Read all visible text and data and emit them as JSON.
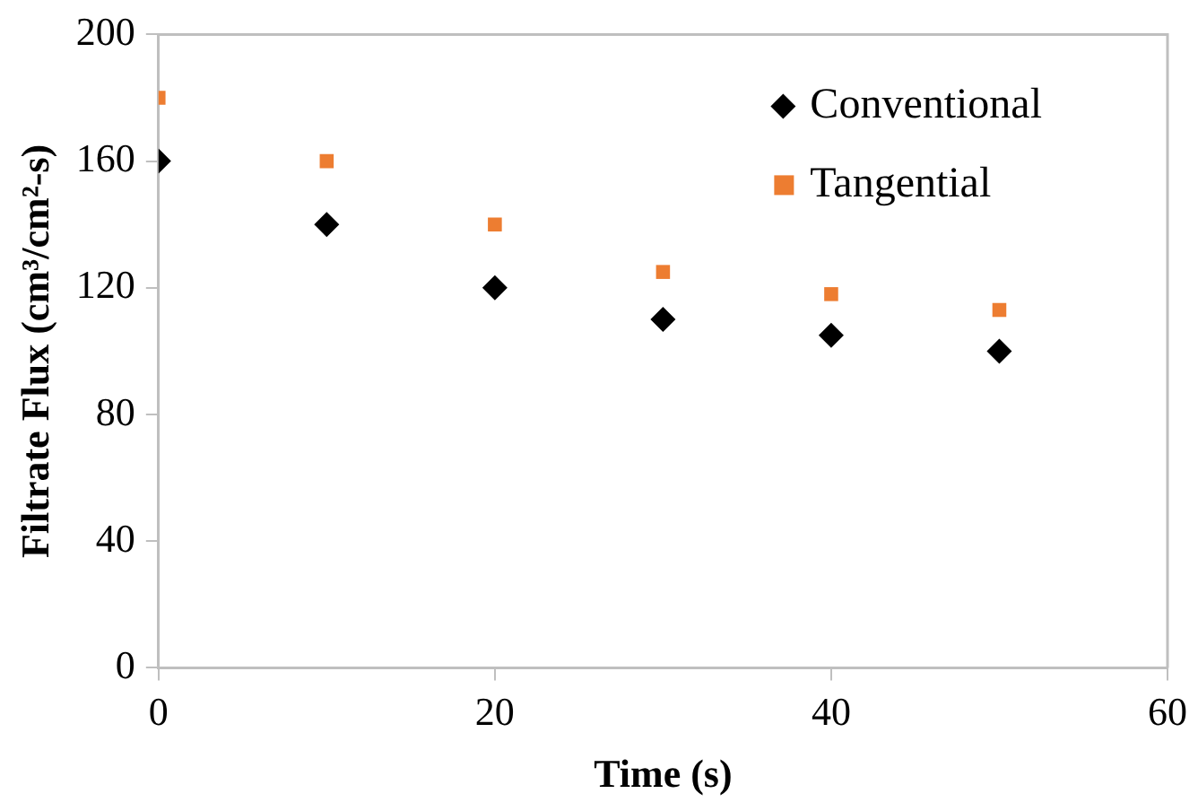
{
  "chart_data": {
    "type": "scatter",
    "xlabel": "Time (s)",
    "ylabel": "Filtrate Flux (cm³/cm²-s)",
    "x": [
      0,
      10,
      20,
      30,
      40,
      50
    ],
    "series": [
      {
        "name": "Conventional",
        "color": "#000000",
        "marker": "diamond",
        "values": [
          160,
          140,
          120,
          110,
          105,
          100
        ]
      },
      {
        "name": "Tangential",
        "color": "#ed7d31",
        "marker": "square",
        "values": [
          180,
          160,
          140,
          125,
          118,
          113
        ]
      }
    ],
    "xlim": [
      0,
      60
    ],
    "xticks": [
      0,
      20,
      40,
      60
    ],
    "ylim": [
      0,
      200
    ],
    "yticks": [
      0,
      40,
      80,
      120,
      160,
      200
    ],
    "grid": false,
    "legend": "top right"
  }
}
